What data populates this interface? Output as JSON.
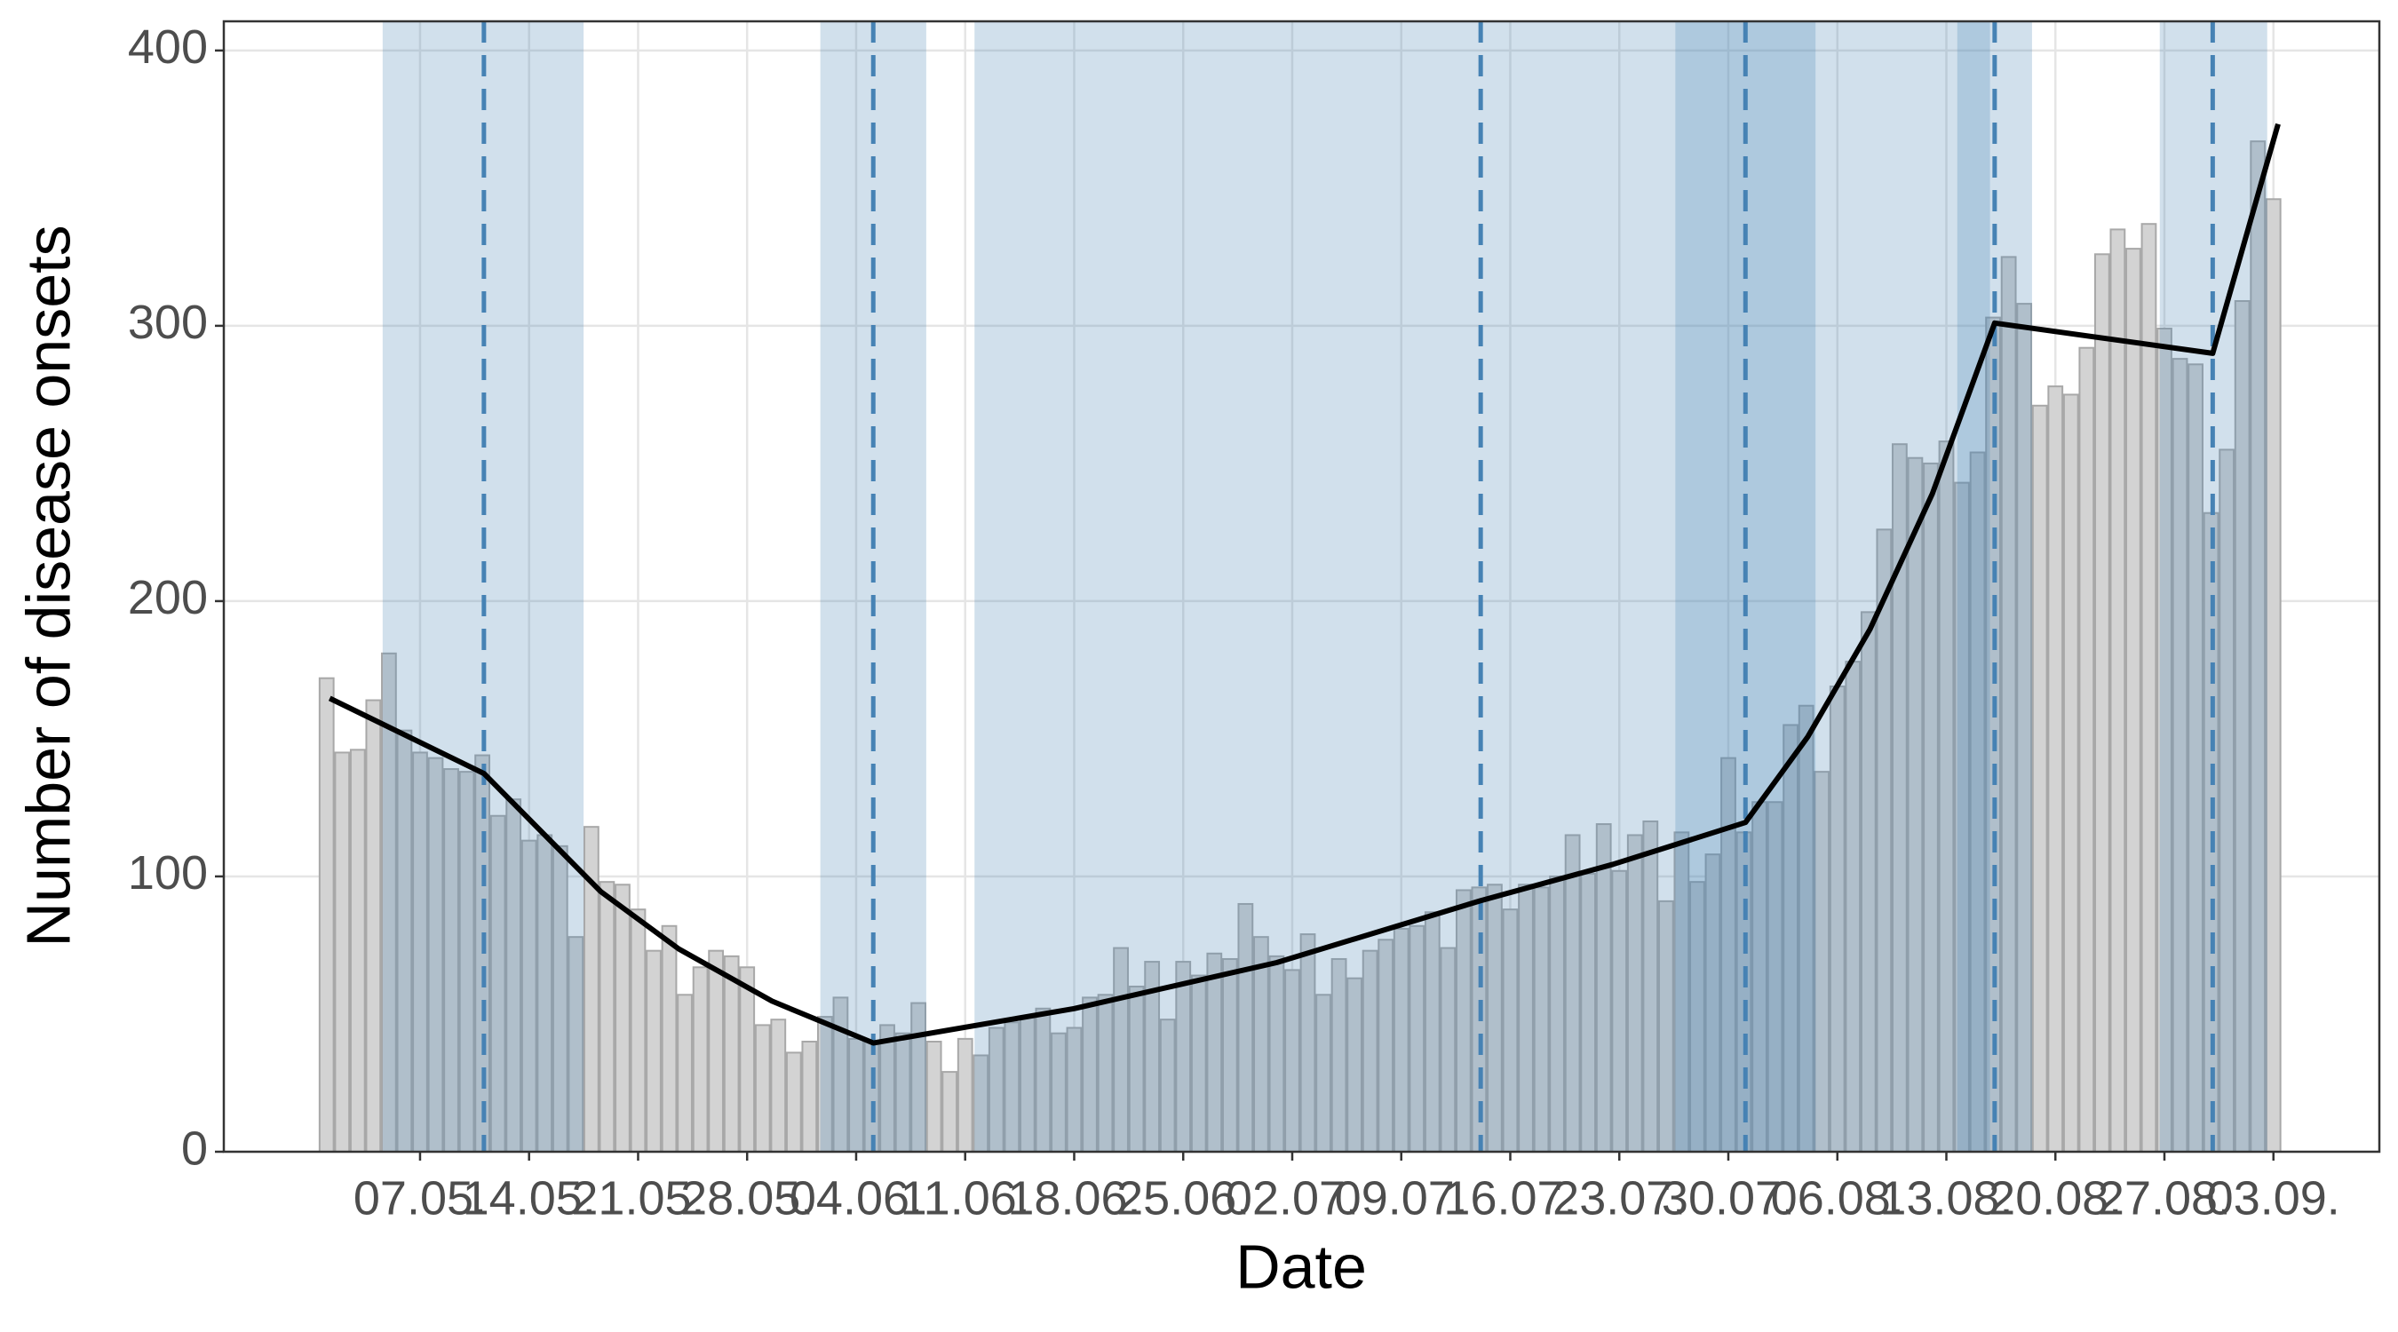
{
  "chart_data": {
    "type": "bar",
    "x_label": "Date",
    "y_label": "Number of disease onsets",
    "categories": [
      null,
      null,
      null,
      null,
      null,
      null,
      "07.05.",
      null,
      null,
      null,
      null,
      null,
      null,
      "14.05.",
      null,
      null,
      null,
      null,
      null,
      null,
      "21.05.",
      null,
      null,
      null,
      null,
      null,
      null,
      "28.05.",
      null,
      null,
      null,
      null,
      null,
      null,
      "04.06.",
      null,
      null,
      null,
      null,
      null,
      null,
      "11.06.",
      null,
      null,
      null,
      null,
      null,
      null,
      "18.06.",
      null,
      null,
      null,
      null,
      null,
      null,
      "25.06.",
      null,
      null,
      null,
      null,
      null,
      null,
      "02.07.",
      null,
      null,
      null,
      null,
      null,
      null,
      "09.07.",
      null,
      null,
      null,
      null,
      null,
      null,
      "16.07.",
      null,
      null,
      null,
      null,
      null,
      null,
      "23.07.",
      null,
      null,
      null,
      null,
      null,
      null,
      "30.07.",
      null,
      null,
      null,
      null,
      null,
      null,
      "06.08.",
      null,
      null,
      null,
      null,
      null,
      null,
      "13.08.",
      null,
      null,
      null,
      null,
      null,
      null,
      "20.08.",
      null,
      null,
      null,
      null,
      null,
      null,
      "27.08.",
      null,
      null,
      null,
      null,
      null,
      null,
      "03.09."
    ],
    "values": [
      172,
      145,
      146,
      164,
      181,
      153,
      145,
      143,
      139,
      138,
      144,
      122,
      128,
      113,
      115,
      111,
      78,
      118,
      98,
      97,
      88,
      73,
      82,
      57,
      67,
      73,
      71,
      67,
      46,
      48,
      36,
      40,
      49,
      56,
      41,
      40,
      46,
      43,
      54,
      40,
      29,
      41,
      35,
      45,
      47,
      49,
      52,
      43,
      45,
      56,
      57,
      74,
      60,
      69,
      48,
      69,
      64,
      72,
      70,
      90,
      78,
      71,
      66,
      79,
      57,
      70,
      63,
      73,
      77,
      81,
      82,
      87,
      74,
      95,
      96,
      97,
      88,
      97,
      96,
      100,
      115,
      101,
      119,
      102,
      115,
      120,
      91,
      116,
      98,
      108,
      143,
      116,
      127,
      127,
      155,
      162,
      138,
      169,
      178,
      196,
      226,
      257,
      252,
      250,
      258,
      243,
      254,
      303,
      325,
      308,
      271,
      278,
      275,
      292,
      326,
      335,
      328,
      337,
      299,
      288,
      286,
      232,
      255,
      309,
      367,
      346
    ],
    "color": "#d3d3d3",
    "fit": {
      "color": "#000000",
      "x": [
        0.2,
        10.1,
        17.6,
        22.6,
        28.6,
        35.1,
        48,
        61,
        74.1,
        82.6,
        91.1,
        95.1,
        99.1,
        103.1,
        107.1,
        121.1,
        125.3
      ],
      "values": [
        164.7,
        137.4,
        94.5,
        73.7,
        54.7,
        39.5,
        52,
        68.7,
        91.2,
        104.4,
        119.6,
        150.7,
        189.8,
        239,
        301,
        290,
        373.3
      ]
    },
    "breakpoints": [
      10.1,
      35.1,
      74.1,
      91.1,
      107.1,
      121.1
    ],
    "breakpoint_color": "#4682b4",
    "intervals": [
      [
        3.6,
        16.5
      ],
      [
        31.7,
        38.5
      ],
      [
        41.6,
        95.6
      ],
      [
        86.6,
        106.8
      ],
      [
        104.7,
        109.5
      ],
      [
        117.7,
        124.6
      ]
    ],
    "interval_color": "#4682b4",
    "xlim": [
      -6.6,
      131.8
    ],
    "ylim": [
      0,
      410.6
    ],
    "yticks": [
      0,
      100,
      200,
      300,
      400
    ],
    "grid": true
  }
}
